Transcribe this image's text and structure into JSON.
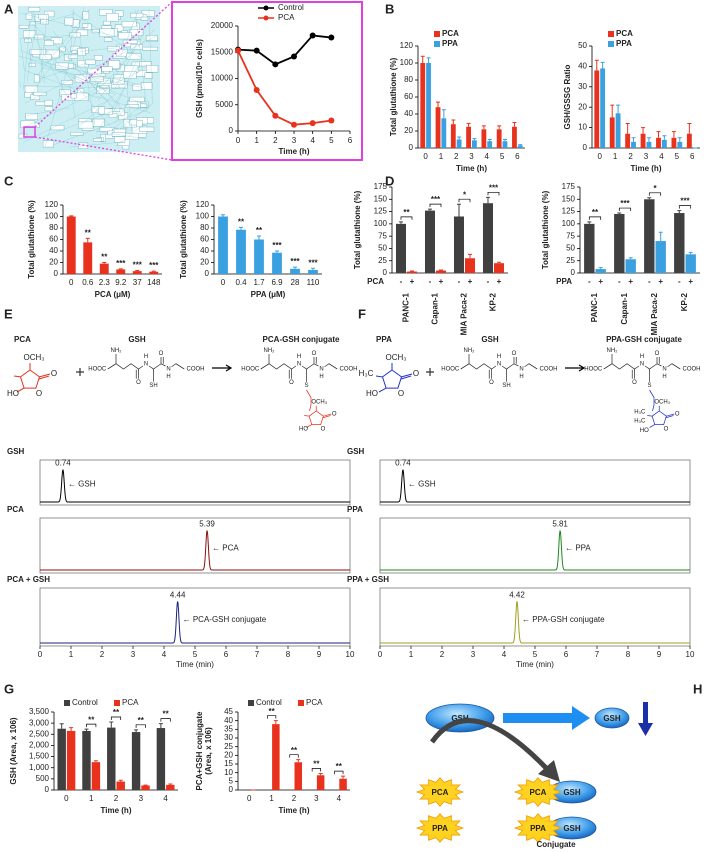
{
  "panel_labels": [
    "A",
    "B",
    "C",
    "D",
    "E",
    "F",
    "G",
    "H"
  ],
  "chart_data": [
    {
      "type": "line",
      "ylabel": "GSH (pmol/10⁶ cells)",
      "xlabel": "Time (h)",
      "x": [
        0,
        1,
        2,
        3,
        4,
        5
      ],
      "series": [
        {
          "name": "Control",
          "color": "#000000",
          "values": [
            15500,
            15300,
            12700,
            14200,
            18200,
            17800
          ]
        },
        {
          "name": "PCA",
          "color": "#e8321e",
          "values": [
            15300,
            7800,
            2900,
            1200,
            1500,
            2000
          ]
        }
      ],
      "xlim": [
        0,
        6
      ],
      "xticks": [
        0,
        1,
        2,
        3,
        4,
        5,
        6
      ],
      "ylim": [
        0,
        20000
      ],
      "yticks": [
        0,
        5000,
        10000,
        15000,
        20000
      ],
      "legend": "top"
    },
    {
      "type": "bar",
      "ylabel": "Total glutathione (%)",
      "xlabel": "Time (h)",
      "categories": [
        "0",
        "1",
        "2",
        "3",
        "4",
        "5",
        "6"
      ],
      "series": [
        {
          "name": "PCA",
          "color": "#e8321e",
          "values": [
            100,
            48,
            28,
            25,
            22,
            22,
            25
          ],
          "errors": [
            8,
            6,
            5,
            4,
            4,
            4,
            5
          ]
        },
        {
          "name": "PPA",
          "color": "#3aa0e0",
          "values": [
            100,
            35,
            10,
            9,
            8,
            8,
            3
          ],
          "errors": [
            6,
            10,
            3,
            2,
            2,
            2,
            1
          ]
        }
      ],
      "ylim": [
        0,
        120
      ],
      "yticks": [
        0,
        20,
        40,
        60,
        80,
        100,
        120
      ],
      "legend": "top-left"
    },
    {
      "type": "bar",
      "ylabel": "GSH/GSSG Ratio",
      "xlabel": "Time (h)",
      "categories": [
        "0",
        "1",
        "2",
        "3",
        "4",
        "5",
        "6"
      ],
      "series": [
        {
          "name": "PCA",
          "color": "#e8321e",
          "values": [
            38,
            15,
            7,
            7,
            5,
            5,
            7
          ],
          "errors": [
            5,
            6,
            5,
            3,
            3,
            3,
            5
          ]
        },
        {
          "name": "PPA",
          "color": "#3aa0e0",
          "values": [
            39,
            17,
            3,
            3,
            4,
            3,
            0
          ],
          "errors": [
            3,
            4,
            2,
            2,
            2,
            2,
            0
          ]
        }
      ],
      "ylim": [
        0,
        50
      ],
      "yticks": [
        0,
        10,
        20,
        30,
        40,
        50
      ],
      "legend": "top-left"
    },
    {
      "type": "bar",
      "ylabel": "Total glutathione (%)",
      "xlabel": "PCA (μM)",
      "categories": [
        "0",
        "0.6",
        "2.3",
        "9.2",
        "37",
        "148"
      ],
      "series": [
        {
          "color": "#e8321e",
          "values": [
            100,
            55,
            18,
            8,
            5,
            4
          ],
          "errors": [
            1,
            7,
            2,
            1,
            1,
            1
          ]
        }
      ],
      "significance": [
        null,
        "**",
        "**",
        "***",
        "***",
        "***"
      ],
      "ylim": [
        0,
        120
      ],
      "yticks": [
        0,
        20,
        40,
        60,
        80,
        100,
        120
      ]
    },
    {
      "type": "bar",
      "ylabel": "Total glutathione (%)",
      "xlabel": "PPA (μM)",
      "categories": [
        "0",
        "0.4",
        "1.7",
        "6.9",
        "28",
        "110"
      ],
      "series": [
        {
          "color": "#3aa0e0",
          "values": [
            100,
            77,
            60,
            37,
            9,
            7
          ],
          "errors": [
            3,
            4,
            6,
            3,
            3,
            3
          ]
        }
      ],
      "significance": [
        null,
        "**",
        "**",
        "***",
        "***",
        "***"
      ],
      "ylim": [
        0,
        120
      ],
      "yticks": [
        0,
        20,
        40,
        60,
        80,
        100,
        120
      ]
    },
    {
      "type": "bar",
      "ylabel": "Total glutathione (%)",
      "treatment_label": "PCA",
      "categories": [
        "PANC-1",
        "Capan-1",
        "MIA Paca-2",
        "KP-2"
      ],
      "series": [
        {
          "name": "-",
          "color": "#404040",
          "values": [
            100,
            127,
            115,
            142
          ],
          "errors": [
            4,
            3,
            25,
            12
          ]
        },
        {
          "name": "+",
          "color": "#e8321e",
          "values": [
            3,
            5,
            30,
            20
          ],
          "errors": [
            1,
            1,
            8,
            2
          ]
        }
      ],
      "significance": [
        "**",
        "***",
        "*",
        "***"
      ],
      "ylim": [
        0,
        175
      ],
      "yticks": [
        0,
        25,
        50,
        75,
        100,
        125,
        150,
        175
      ],
      "legend": "bottom"
    },
    {
      "type": "bar",
      "ylabel": "Total glutathione (%)",
      "treatment_label": "PPA",
      "categories": [
        "PANC-1",
        "Capan-1",
        "MIA Paca-2",
        "KP-2"
      ],
      "series": [
        {
          "name": "-",
          "color": "#404040",
          "values": [
            100,
            120,
            150,
            122
          ],
          "errors": [
            4,
            2,
            3,
            5
          ]
        },
        {
          "name": "+",
          "color": "#3aa0e0",
          "values": [
            8,
            28,
            65,
            38
          ],
          "errors": [
            3,
            3,
            18,
            4
          ]
        }
      ],
      "significance": [
        "**",
        "***",
        "*",
        "***"
      ],
      "ylim": [
        0,
        175
      ],
      "yticks": [
        0,
        25,
        50,
        75,
        100,
        125,
        150,
        175
      ],
      "legend": "bottom"
    },
    {
      "type": "chromatogram",
      "title": "GSH",
      "color": "#000000",
      "peak": 0.74,
      "peak_label": "← GSH",
      "xlim": [
        0,
        10
      ]
    },
    {
      "type": "chromatogram",
      "title": "PCA",
      "color": "#8b1010",
      "peak": 5.39,
      "peak_label": "← PCA",
      "xlim": [
        0,
        10
      ]
    },
    {
      "type": "chromatogram",
      "title": "PCA + GSH",
      "color": "#1a237e",
      "peak": 4.44,
      "peak_label": "← PCA-GSH conjugate",
      "xlim": [
        0,
        10
      ],
      "xticks": [
        0,
        1,
        2,
        3,
        4,
        5,
        6,
        7,
        8,
        9,
        10
      ],
      "xlabel": "Time (min)"
    },
    {
      "type": "chromatogram",
      "title": "GSH",
      "color": "#000000",
      "peak": 0.74,
      "peak_label": "← GSH",
      "xlim": [
        0,
        10
      ]
    },
    {
      "type": "chromatogram",
      "title": "PPA",
      "color": "#1b8a1b",
      "peak": 5.81,
      "peak_label": "← PPA",
      "xlim": [
        0,
        10
      ]
    },
    {
      "type": "chromatogram",
      "title": "PPA + GSH",
      "color": "#a0a020",
      "peak": 4.42,
      "peak_label": "← PPA-GSH conjugate",
      "xlim": [
        0,
        10
      ],
      "xticks": [
        0,
        1,
        2,
        3,
        4,
        5,
        6,
        7,
        8,
        9,
        10
      ],
      "xlabel": "Time (min)"
    },
    {
      "type": "bar",
      "ylabel": "GSH (Area, x 106)",
      "xlabel": "Time (h)",
      "categories": [
        "0",
        "1",
        "2",
        "3",
        "4"
      ],
      "series": [
        {
          "name": "Control",
          "color": "#404040",
          "values": [
            2750,
            2650,
            2800,
            2600,
            2780
          ],
          "errors": [
            220,
            80,
            250,
            100,
            200
          ]
        },
        {
          "name": "PCA",
          "color": "#e8321e",
          "values": [
            2650,
            1250,
            380,
            200,
            230
          ],
          "errors": [
            150,
            60,
            60,
            20,
            40
          ]
        }
      ],
      "significance": [
        null,
        "**",
        "**",
        "**",
        "**"
      ],
      "ylim": [
        0,
        3500
      ],
      "yticks": [
        0,
        500,
        {
          "value": 1000,
          "label": "1,000"
        },
        {
          "value": 1500,
          "label": "1,500"
        },
        {
          "value": 2000,
          "label": "2,000"
        },
        {
          "value": 2500,
          "label": "2,500"
        },
        {
          "value": 3000,
          "label": "3,000"
        },
        {
          "value": 3500,
          "label": "3,500"
        }
      ],
      "legend": "top"
    },
    {
      "type": "bar",
      "ylabel": [
        "PCA+GSH conjugate",
        "(Area, x 106)"
      ],
      "xlabel": "Time (h)",
      "categories": [
        "0",
        "1",
        "2",
        "3",
        "4"
      ],
      "series": [
        {
          "name": "Control",
          "color": "#404040",
          "values": [
            0,
            0,
            0,
            0,
            0
          ],
          "errors": [
            0,
            0,
            0,
            0,
            0
          ]
        },
        {
          "name": "PCA",
          "color": "#e8321e",
          "values": [
            0,
            38,
            16,
            8.5,
            6.5
          ],
          "errors": [
            0,
            2,
            1.5,
            1,
            1.5
          ]
        }
      ],
      "significance": [
        null,
        "**",
        "**",
        "**",
        "**"
      ],
      "ylim": [
        0,
        45
      ],
      "yticks": [
        0,
        5,
        10,
        15,
        20,
        25,
        30,
        35,
        40,
        45
      ],
      "legend": "top"
    }
  ],
  "schemes": [
    {
      "color": "#e8321e",
      "reactant": "PCA",
      "reagent": "GSH",
      "product": "PCA-GSH conjugate",
      "reactant_atoms": [
        "OCH₃",
        "HO",
        "O",
        "O"
      ],
      "reagent_atoms": [
        "NH₂",
        "HOOC",
        "O",
        "H",
        "N",
        "SH",
        "O",
        "N",
        "H",
        "COOH"
      ],
      "product_atoms": [
        "NH₂",
        "HOOC",
        "O",
        "H",
        "N",
        "S",
        "O",
        "N",
        "H",
        "COOH"
      ],
      "product_tail_atoms": [
        "OCH₃",
        "HO",
        "O",
        "O"
      ]
    },
    {
      "color": "#2233cc",
      "reactant": "PPA",
      "reagent": "GSH",
      "product": "PPA-GSH conjugate",
      "reactant_atoms": [
        "OCH₃",
        "H₃C",
        "HO",
        "O",
        "O"
      ],
      "reagent_atoms": [
        "NH₂",
        "HOOC",
        "O",
        "H",
        "N",
        "SH",
        "O",
        "N",
        "H",
        "COOH"
      ],
      "product_atoms": [
        "NH₂",
        "HOOC",
        "O",
        "H",
        "N",
        "S",
        "O",
        "N",
        "H",
        "COOH"
      ],
      "product_tail_atoms": [
        "OCH₃",
        "H₃C",
        "H₃C",
        "HO",
        "O",
        "O"
      ]
    }
  ],
  "diagram": {
    "gsh": "GSH",
    "gsh_small": "GSH",
    "reactants": [
      "PCA",
      "PPA"
    ],
    "conjugates": [
      {
        "reactant": "PCA",
        "gsh": "GSH"
      },
      {
        "reactant": "PPA",
        "gsh": "GSH"
      }
    ],
    "caption": "Conjugate"
  }
}
